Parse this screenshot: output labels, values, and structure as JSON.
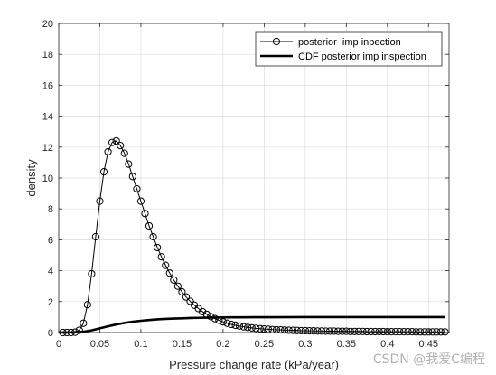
{
  "chart_data": {
    "type": "line",
    "xlabel": "Pressure change rate (kPa/year)",
    "ylabel": "density",
    "xlim": [
      0,
      0.475
    ],
    "ylim": [
      0,
      20
    ],
    "xticks": [
      0,
      0.05,
      0.1,
      0.15,
      0.2,
      0.25,
      0.3,
      0.35,
      0.4,
      0.45
    ],
    "xtick_labels": [
      "0",
      "0.05",
      "0.1",
      "0.15",
      "0.2",
      "0.25",
      "0.3",
      "0.35",
      "0.4",
      "0.45"
    ],
    "yticks": [
      0,
      2,
      4,
      6,
      8,
      10,
      12,
      14,
      16,
      18,
      20
    ],
    "ytick_labels": [
      "0",
      "2",
      "4",
      "6",
      "8",
      "10",
      "12",
      "14",
      "16",
      "18",
      "20"
    ],
    "grid": true,
    "legend_position": "top-right",
    "series": [
      {
        "name": "posterior  imp inpection",
        "style": "thin-line-circle-markers",
        "color": "#000000",
        "x": [
          0.005,
          0.01,
          0.015,
          0.02,
          0.025,
          0.03,
          0.035,
          0.04,
          0.045,
          0.05,
          0.055,
          0.06,
          0.065,
          0.07,
          0.075,
          0.08,
          0.085,
          0.09,
          0.095,
          0.1,
          0.105,
          0.11,
          0.115,
          0.12,
          0.125,
          0.13,
          0.135,
          0.14,
          0.145,
          0.15,
          0.155,
          0.16,
          0.165,
          0.17,
          0.175,
          0.18,
          0.185,
          0.19,
          0.195,
          0.2,
          0.205,
          0.21,
          0.215,
          0.22,
          0.225,
          0.23,
          0.235,
          0.24,
          0.245,
          0.25,
          0.255,
          0.26,
          0.265,
          0.27,
          0.275,
          0.28,
          0.285,
          0.29,
          0.295,
          0.3,
          0.305,
          0.31,
          0.315,
          0.32,
          0.325,
          0.33,
          0.335,
          0.34,
          0.345,
          0.35,
          0.355,
          0.36,
          0.365,
          0.37,
          0.375,
          0.38,
          0.385,
          0.39,
          0.395,
          0.4,
          0.405,
          0.41,
          0.415,
          0.42,
          0.425,
          0.43,
          0.435,
          0.44,
          0.445,
          0.45,
          0.455,
          0.46,
          0.465,
          0.47
        ],
        "y": [
          0.0,
          0.0,
          0.0,
          0.02,
          0.15,
          0.6,
          1.8,
          3.8,
          6.2,
          8.5,
          10.4,
          11.7,
          12.3,
          12.4,
          12.1,
          11.6,
          10.9,
          10.1,
          9.3,
          8.5,
          7.7,
          6.9,
          6.2,
          5.5,
          4.9,
          4.35,
          3.85,
          3.4,
          3.0,
          2.63,
          2.3,
          2.02,
          1.77,
          1.55,
          1.35,
          1.18,
          1.03,
          0.9,
          0.79,
          0.69,
          0.6,
          0.53,
          0.47,
          0.42,
          0.37,
          0.33,
          0.3,
          0.27,
          0.25,
          0.23,
          0.21,
          0.19,
          0.18,
          0.17,
          0.16,
          0.15,
          0.14,
          0.13,
          0.12,
          0.12,
          0.11,
          0.11,
          0.1,
          0.1,
          0.09,
          0.09,
          0.09,
          0.08,
          0.08,
          0.08,
          0.07,
          0.07,
          0.07,
          0.07,
          0.06,
          0.06,
          0.06,
          0.06,
          0.06,
          0.05,
          0.05,
          0.05,
          0.05,
          0.05,
          0.05,
          0.05,
          0.04,
          0.04,
          0.04,
          0.04,
          0.04,
          0.04,
          0.04,
          0.04
        ]
      },
      {
        "name": "CDF posterior imp inspection",
        "style": "thick-line",
        "color": "#000000",
        "x": [
          0.0,
          0.02,
          0.03,
          0.04,
          0.05,
          0.06,
          0.07,
          0.08,
          0.09,
          0.1,
          0.11,
          0.12,
          0.13,
          0.14,
          0.15,
          0.16,
          0.17,
          0.18,
          0.19,
          0.2,
          0.22,
          0.24,
          0.26,
          0.3,
          0.35,
          0.4,
          0.47
        ],
        "y": [
          0.0,
          0.01,
          0.05,
          0.14,
          0.27,
          0.4,
          0.52,
          0.62,
          0.7,
          0.76,
          0.81,
          0.85,
          0.88,
          0.9,
          0.92,
          0.94,
          0.95,
          0.96,
          0.97,
          0.98,
          0.985,
          0.99,
          0.993,
          0.996,
          0.998,
          0.999,
          1.0
        ]
      }
    ]
  },
  "watermark": "CSDN @我爱C编程"
}
